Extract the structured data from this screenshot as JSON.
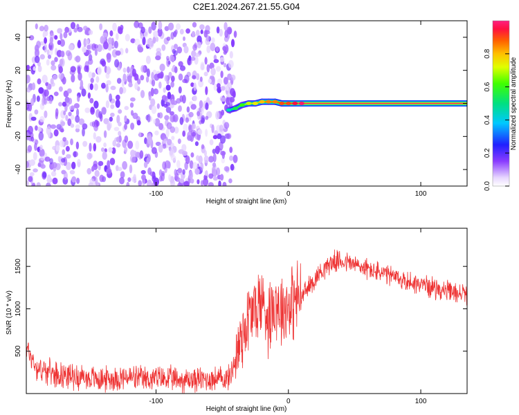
{
  "title": "C2E1.2024.267.21.55.G04",
  "chart_data": [
    {
      "type": "heatmap",
      "xlabel": "Height of straight line (km)",
      "ylabel": "Frequency (Hz)",
      "xlim": [
        -198,
        135
      ],
      "ylim": [
        -50,
        50
      ],
      "x_ticks": [
        -100,
        0,
        100
      ],
      "x_tick_labels": [
        "-100",
        "0",
        "100"
      ],
      "y_ticks": [
        -40,
        -20,
        0,
        20,
        40
      ],
      "y_tick_labels": [
        "-40",
        "-20",
        "0",
        "20",
        "40"
      ],
      "noise_region": {
        "x_from": -198,
        "x_to": -40,
        "y_from": -50,
        "y_to": 48
      },
      "ridge": [
        {
          "x": -45,
          "y": -4,
          "v": 0.45
        },
        {
          "x": -40,
          "y": -3,
          "v": 0.55
        },
        {
          "x": -35,
          "y": -1,
          "v": 0.6
        },
        {
          "x": -30,
          "y": 0,
          "v": 0.7
        },
        {
          "x": -25,
          "y": 0,
          "v": 0.75
        },
        {
          "x": -20,
          "y": 1,
          "v": 0.8
        },
        {
          "x": -15,
          "y": 1,
          "v": 0.85
        },
        {
          "x": -10,
          "y": 1,
          "v": 0.85
        },
        {
          "x": -5,
          "y": 0,
          "v": 0.9
        },
        {
          "x": 0,
          "y": 0,
          "v": 0.9
        },
        {
          "x": 5,
          "y": 0,
          "v": 0.95
        },
        {
          "x": 10,
          "y": 0,
          "v": 0.98
        },
        {
          "x": 135,
          "y": 0,
          "v": 0.98
        }
      ],
      "colorbar": {
        "label": "Normalized spectral amplitude",
        "range": [
          0,
          1
        ],
        "ticks": [
          0.0,
          0.2,
          0.4,
          0.6,
          0.8
        ],
        "tick_labels": [
          "0.0",
          "0.2",
          "0.4",
          "0.6",
          "0.8"
        ]
      },
      "grid": false
    },
    {
      "type": "line",
      "xlabel": "Height of straight line (km)",
      "ylabel": "SNR (10 * v/v)",
      "xlim": [
        -198,
        135
      ],
      "ylim": [
        0,
        1950
      ],
      "x_ticks": [
        -100,
        0,
        100
      ],
      "x_tick_labels": [
        "-100",
        "0",
        "100"
      ],
      "y_ticks": [
        500,
        1000,
        1500
      ],
      "y_tick_labels": [
        "500",
        "1000",
        "1500"
      ],
      "series": [
        {
          "color": "#ee3333",
          "x": [
            -198,
            -190,
            -180,
            -170,
            -160,
            -150,
            -140,
            -130,
            -120,
            -110,
            -100,
            -90,
            -80,
            -70,
            -60,
            -50,
            -45,
            -40,
            -35,
            -30,
            -25,
            -20,
            -15,
            -10,
            -5,
            0,
            5,
            10,
            15,
            20,
            25,
            30,
            35,
            40,
            45,
            50,
            60,
            70,
            80,
            90,
            100,
            110,
            120,
            130,
            135
          ],
          "y": [
            550,
            300,
            250,
            220,
            200,
            180,
            170,
            180,
            190,
            170,
            180,
            170,
            160,
            165,
            170,
            175,
            180,
            400,
            700,
            900,
            1000,
            1100,
            900,
            1100,
            1000,
            1050,
            1100,
            1150,
            1250,
            1350,
            1450,
            1520,
            1560,
            1560,
            1550,
            1520,
            1470,
            1420,
            1370,
            1320,
            1290,
            1250,
            1200,
            1180,
            1180
          ]
        }
      ],
      "grid": false
    }
  ]
}
